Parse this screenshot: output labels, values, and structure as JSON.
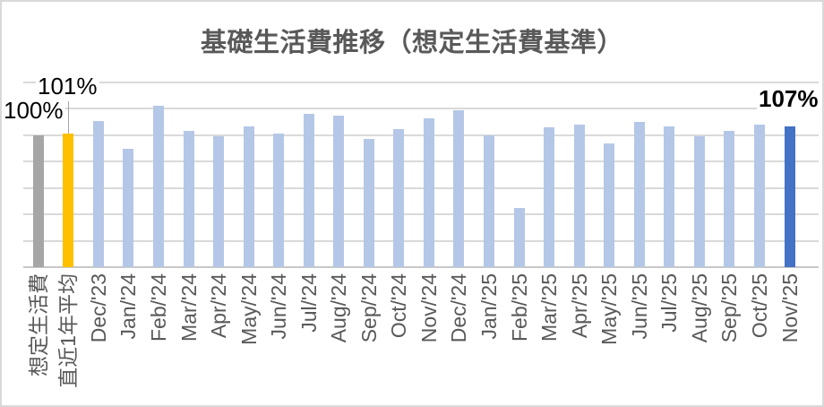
{
  "title": "基礎生活費推移（想定生活費基準）",
  "chart_data": {
    "type": "bar",
    "title": "基礎生活費推移（想定生活費基準）",
    "categories": [
      "想定生活費",
      "直近1年平均",
      "Dec/'23",
      "Jan/'24",
      "Feb/'24",
      "Mar/'24",
      "Apr/'24",
      "May/'24",
      "Jun/'24",
      "Jul/'24",
      "Aug/'24",
      "Sep/'24",
      "Oct/'24",
      "Nov/'24",
      "Dec/'24",
      "Jan/'25",
      "Feb/'25",
      "Mar/'25",
      "Apr/'25",
      "May/'25",
      "Jun/'25",
      "Jul/'25",
      "Aug/'25",
      "Sep/'25",
      "Oct/'25",
      "Nov/'25"
    ],
    "values": [
      100,
      101,
      111,
      90,
      122,
      103,
      99,
      107,
      101,
      116,
      115,
      97,
      105,
      113,
      119,
      100,
      45,
      106,
      108,
      94,
      110,
      107,
      99,
      103,
      108,
      107
    ],
    "unit": "%",
    "xlabel": "",
    "ylabel": "",
    "ylim": [
      0,
      140
    ],
    "gridline_step": 20,
    "grid": true,
    "legend": "none",
    "x_axis_label_rotation_deg": -90,
    "bar_colors": [
      "#A6A6A6",
      "#FFC000",
      "#B4C7E7",
      "#B4C7E7",
      "#B4C7E7",
      "#B4C7E7",
      "#B4C7E7",
      "#B4C7E7",
      "#B4C7E7",
      "#B4C7E7",
      "#B4C7E7",
      "#B4C7E7",
      "#B4C7E7",
      "#B4C7E7",
      "#B4C7E7",
      "#B4C7E7",
      "#B4C7E7",
      "#B4C7E7",
      "#B4C7E7",
      "#B4C7E7",
      "#B4C7E7",
      "#B4C7E7",
      "#B4C7E7",
      "#B4C7E7",
      "#B4C7E7",
      "#4472C4"
    ],
    "point_labels": [
      {
        "category_index": 0,
        "text": "100%",
        "bold": false,
        "leader_line": false
      },
      {
        "category_index": 1,
        "text": "101%",
        "bold": false,
        "leader_line": true
      },
      {
        "category_index": 25,
        "text": "107%",
        "bold": true,
        "leader_line": false
      }
    ]
  },
  "colors": {
    "reference_bar": "#A6A6A6",
    "average_bar": "#FFC000",
    "monthly_bar": "#B4C7E7",
    "latest_bar": "#4472C4",
    "gridline": "#D9D9D9",
    "axis_line": "#C8C8C8",
    "title_text": "#595959",
    "axis_label_text": "#595959",
    "data_label_text": "#000000",
    "background": "#FFFFFF",
    "chart_border": "#D9D9D9"
  }
}
